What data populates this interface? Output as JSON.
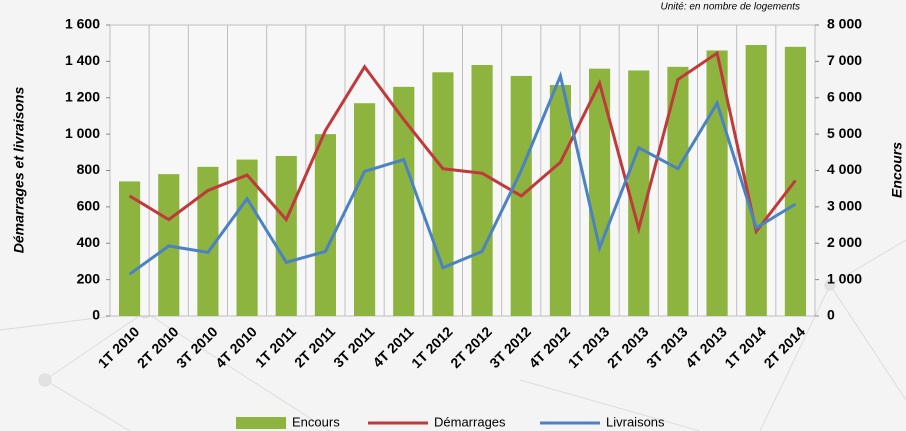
{
  "chart_data": {
    "type": "bar_line",
    "annotation": "Unité: en nombre de logements",
    "y_label": "Démarrages et livraisons",
    "y2_label": "Encours",
    "categories": [
      "1T 2010",
      "2T 2010",
      "3T 2010",
      "4T 2010",
      "1T 2011",
      "2T 2011",
      "3T 2011",
      "4T 2011",
      "1T 2012",
      "2T 2012",
      "3T 2012",
      "4T 2012",
      "1T 2013",
      "2T 2013",
      "3T 2013",
      "4T 2013",
      "1T 2014",
      "2T 2014"
    ],
    "series": [
      {
        "name": "Encours",
        "type": "bar",
        "axis": "y2",
        "color": "#8db43e",
        "values": [
          3700,
          3900,
          4100,
          4300,
          4400,
          5000,
          5850,
          6300,
          6700,
          6900,
          6600,
          6350,
          6800,
          6750,
          6850,
          7300,
          7450,
          7400
        ]
      },
      {
        "name": "Démarrages",
        "type": "line",
        "axis": "y",
        "color": "#c0393b",
        "values": [
          660,
          530,
          690,
          775,
          530,
          1020,
          1370,
          1080,
          810,
          785,
          660,
          845,
          1280,
          480,
          1300,
          1445,
          465,
          745
        ]
      },
      {
        "name": "Livraisons",
        "type": "line",
        "axis": "y",
        "color": "#4a82c4",
        "values": [
          230,
          385,
          350,
          645,
          295,
          355,
          795,
          860,
          265,
          355,
          800,
          1320,
          375,
          925,
          810,
          1170,
          485,
          615
        ]
      }
    ],
    "ylim": [
      0,
      1600
    ],
    "yticks": [
      0,
      200,
      400,
      600,
      800,
      {
        "value": 1000,
        "label": "1 000"
      },
      {
        "value": 1200,
        "label": "1 200"
      },
      {
        "value": 1400,
        "label": "1 400"
      },
      {
        "value": 1600,
        "label": "1 600"
      }
    ],
    "y2lim": [
      0,
      8000
    ],
    "y2ticks": [
      0,
      {
        "value": 1000,
        "label": "1 000"
      },
      {
        "value": 2000,
        "label": "2 000"
      },
      {
        "value": 3000,
        "label": "3 000"
      },
      {
        "value": 4000,
        "label": "4 000"
      },
      {
        "value": 5000,
        "label": "5 000"
      },
      {
        "value": 6000,
        "label": "6 000"
      },
      {
        "value": 7000,
        "label": "7 000"
      },
      {
        "value": 8000,
        "label": "8 000"
      }
    ]
  }
}
